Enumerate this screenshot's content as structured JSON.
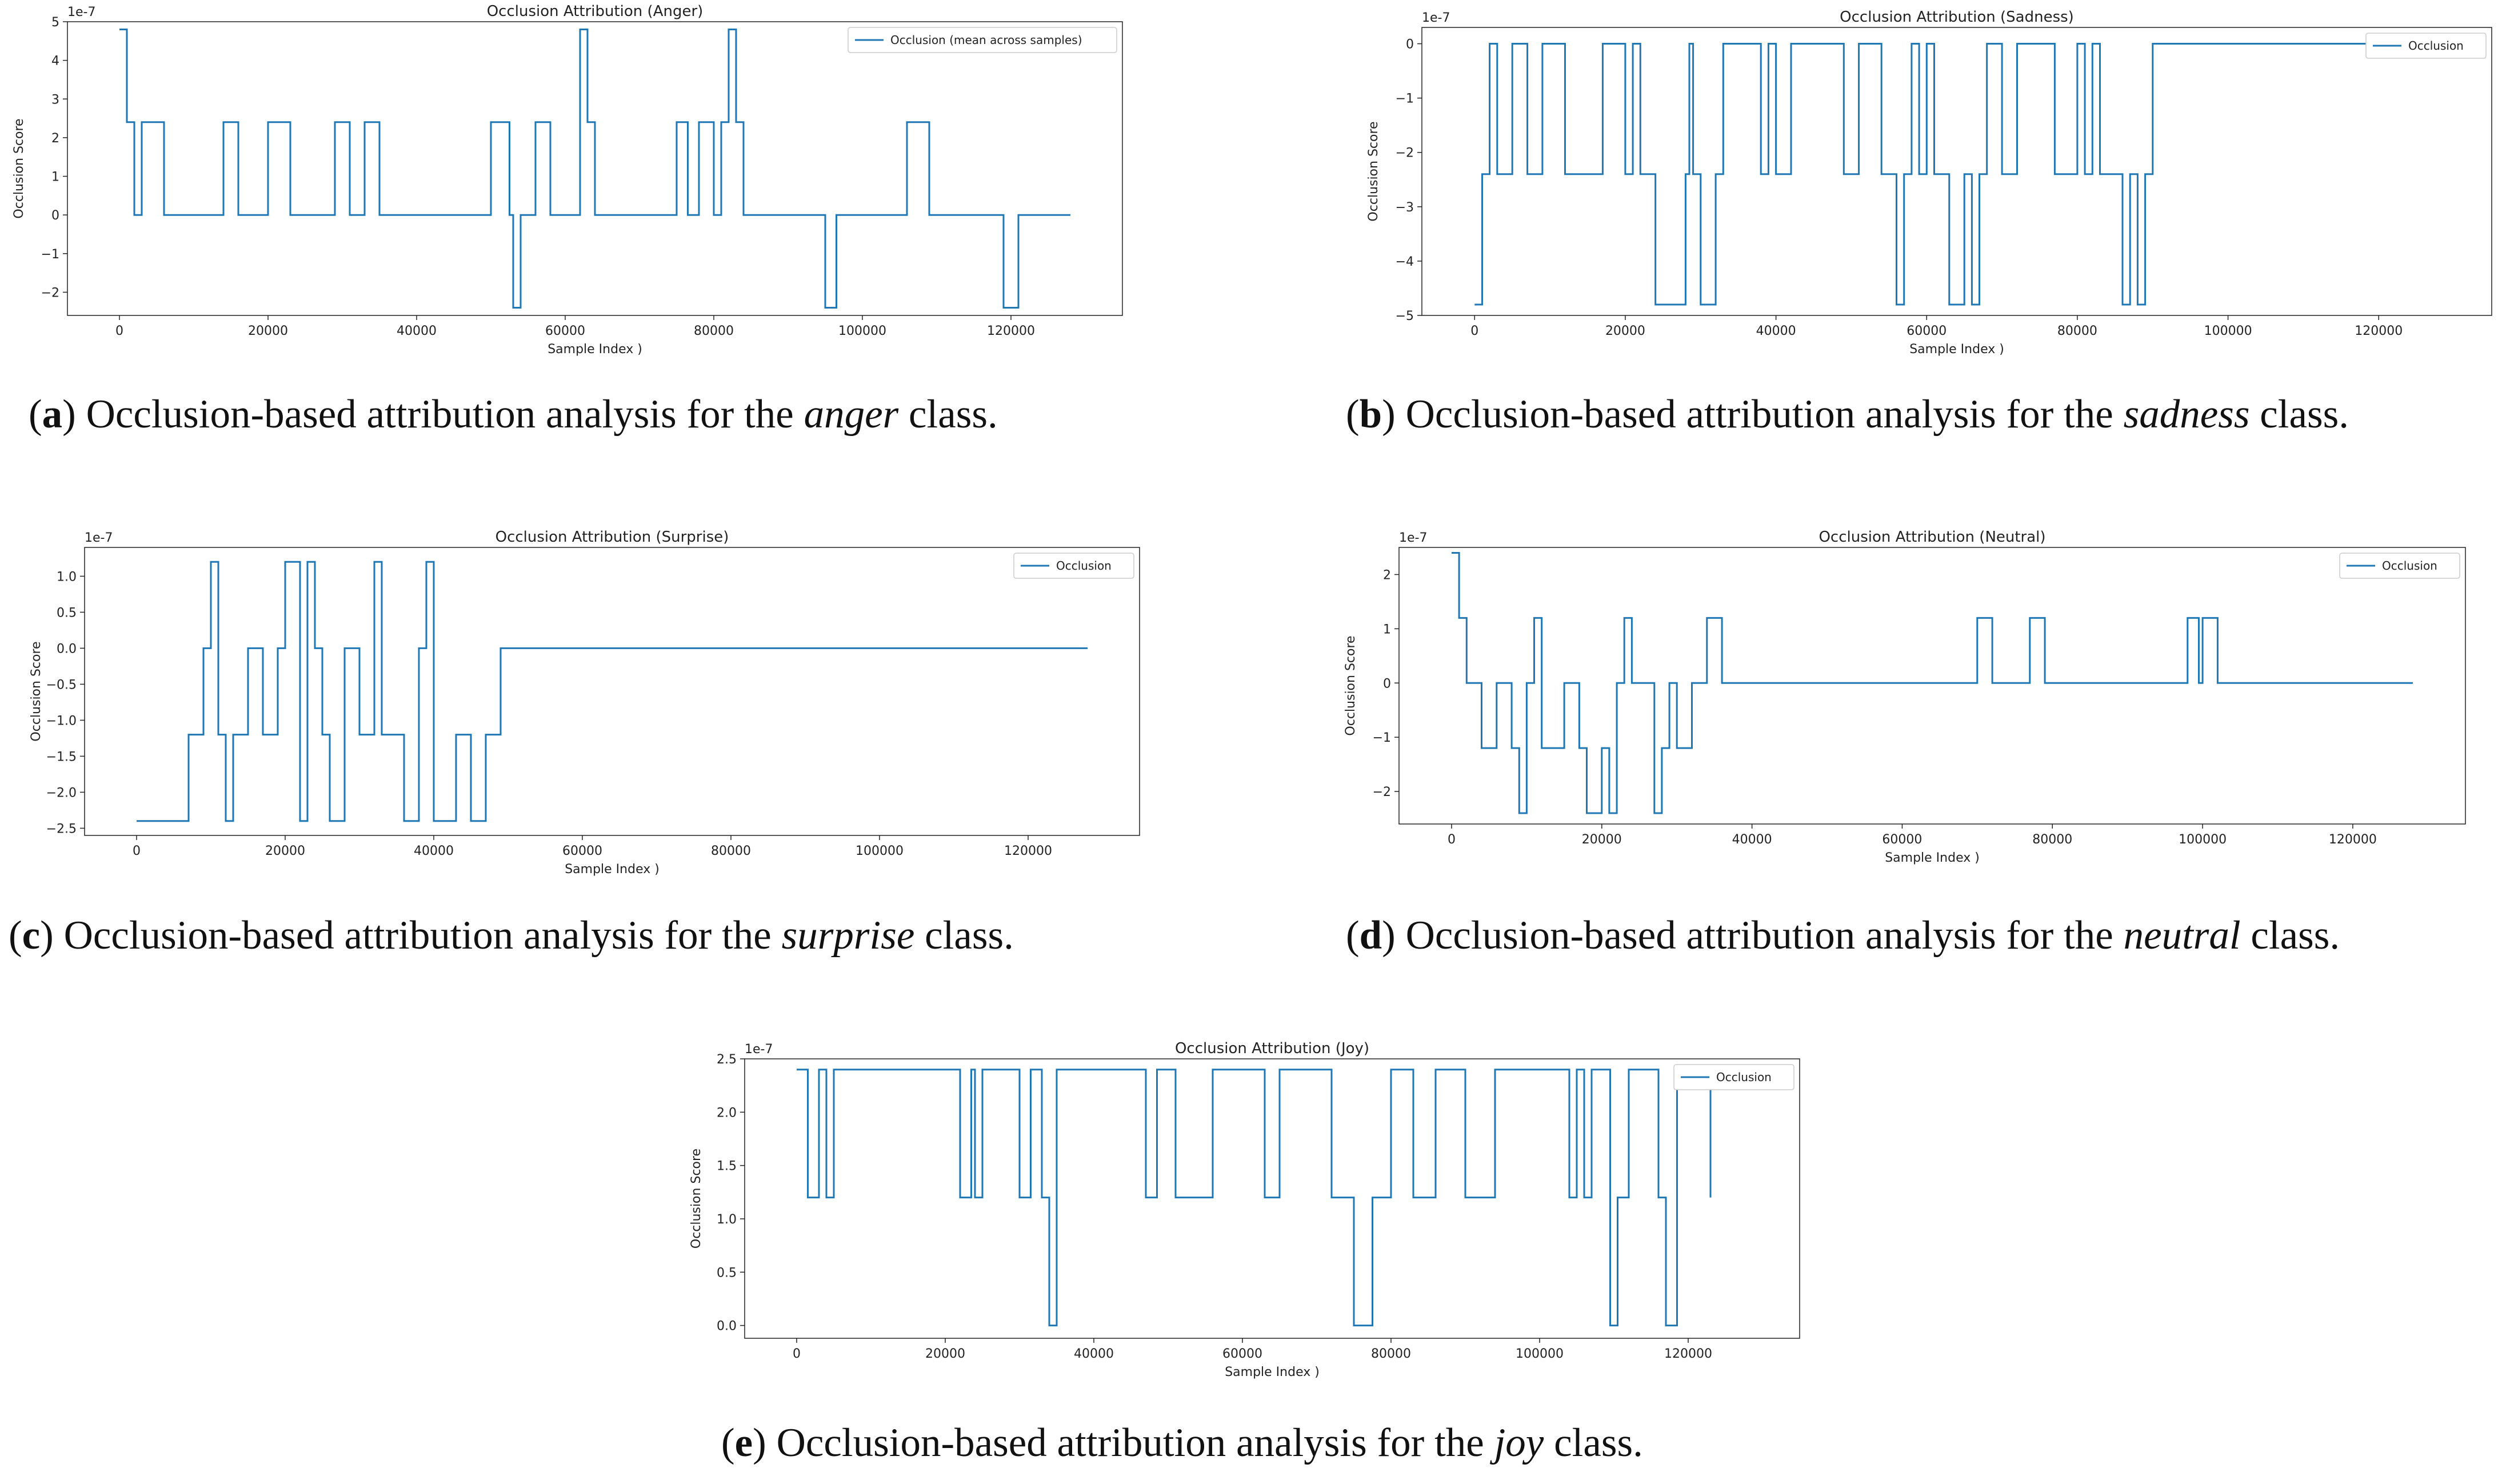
{
  "figure": {
    "captions": [
      {
        "label": "a",
        "prefix": "Occlusion-based attribution analysis for the ",
        "emph": "anger",
        "suffix": " class."
      },
      {
        "label": "b",
        "prefix": "Occlusion-based attribution analysis for the ",
        "emph": "sadness",
        "suffix": " class."
      },
      {
        "label": "c",
        "prefix": "Occlusion-based attribution analysis for the ",
        "emph": "surprise",
        "suffix": " class."
      },
      {
        "label": "d",
        "prefix": "Occlusion-based attribution analysis for the ",
        "emph": "neutral",
        "suffix": " class."
      },
      {
        "label": "e",
        "prefix": "Occlusion-based attribution analysis for the ",
        "emph": "joy",
        "suffix": " class."
      }
    ]
  },
  "chart_data": [
    {
      "type": "line",
      "title": "Occlusion Attribution (Anger)",
      "xlabel": "Sample Index )",
      "ylabel": "Occlusion Score",
      "scale_note": "1e-7",
      "xlim": [
        -7000,
        135000
      ],
      "ylim": [
        -2.6,
        5.0
      ],
      "xticks": [
        0,
        20000,
        40000,
        60000,
        80000,
        100000,
        120000
      ],
      "yticks": [
        -2,
        -1,
        0,
        1,
        2,
        3,
        4,
        5
      ],
      "ytick_labels": [
        "−2",
        "−1",
        "0",
        "1",
        "2",
        "3",
        "4",
        "5"
      ],
      "legend": "top-right",
      "line_color": "#1f77b4",
      "series": [
        {
          "name": "Occlusion (mean across samples)",
          "step": true,
          "x": [
            0,
            1000,
            2000,
            3000,
            6000,
            14000,
            16000,
            20000,
            23000,
            29000,
            31000,
            33000,
            35000,
            50000,
            52500,
            53000,
            54000,
            56000,
            58000,
            62000,
            63000,
            64000,
            75000,
            76500,
            78000,
            80000,
            81000,
            82000,
            83000,
            84000,
            95000,
            96500,
            106000,
            109000,
            119000,
            121000,
            128000
          ],
          "y": [
            4.8,
            2.4,
            0,
            2.4,
            0,
            2.4,
            0,
            2.4,
            0,
            2.4,
            0,
            2.4,
            0,
            2.4,
            0,
            -2.4,
            0,
            2.4,
            0,
            4.8,
            2.4,
            0,
            2.4,
            0,
            2.4,
            0,
            2.4,
            4.8,
            2.4,
            0,
            -2.4,
            0,
            2.4,
            0,
            -2.4,
            0,
            0
          ]
        }
      ]
    },
    {
      "type": "line",
      "title": "Occlusion Attribution (Sadness)",
      "xlabel": "Sample Index )",
      "ylabel": "Occlusion Score",
      "scale_note": "1e-7",
      "xlim": [
        -7000,
        135000
      ],
      "ylim": [
        -5.0,
        0.3
      ],
      "xticks": [
        0,
        20000,
        40000,
        60000,
        80000,
        100000,
        120000
      ],
      "yticks": [
        -5,
        -4,
        -3,
        -2,
        -1,
        0
      ],
      "ytick_labels": [
        "−5",
        "−4",
        "−3",
        "−2",
        "−1",
        "0"
      ],
      "legend": "top-right",
      "line_color": "#1f77b4",
      "series": [
        {
          "name": "Occlusion",
          "step": true,
          "x": [
            0,
            1000,
            2000,
            3000,
            5000,
            7000,
            9000,
            12000,
            17000,
            20000,
            21000,
            22000,
            24000,
            28000,
            28500,
            29000,
            30000,
            32000,
            33000,
            38000,
            39000,
            40000,
            42000,
            49000,
            51000,
            54000,
            56000,
            57000,
            58000,
            59000,
            60000,
            61000,
            63000,
            65000,
            66000,
            67000,
            68000,
            70000,
            72000,
            77000,
            80000,
            81000,
            82000,
            83000,
            86000,
            87000,
            88000,
            89000,
            90000,
            128000
          ],
          "y": [
            -4.8,
            -2.4,
            0,
            -2.4,
            0,
            -2.4,
            0,
            -2.4,
            0,
            -2.4,
            0,
            -2.4,
            -4.8,
            -2.4,
            0,
            -2.4,
            -4.8,
            -2.4,
            0,
            -2.4,
            0,
            -2.4,
            0,
            -2.4,
            0,
            -2.4,
            -4.8,
            -2.4,
            0,
            -2.4,
            0,
            -2.4,
            -4.8,
            -2.4,
            -4.8,
            -2.4,
            0,
            -2.4,
            0,
            -2.4,
            0,
            -2.4,
            0,
            -2.4,
            -4.8,
            -2.4,
            -4.8,
            -2.4,
            0,
            0
          ]
        }
      ]
    },
    {
      "type": "line",
      "title": "Occlusion Attribution (Surprise)",
      "xlabel": "Sample Index )",
      "ylabel": "Occlusion Score",
      "scale_note": "1e-7",
      "xlim": [
        -7000,
        135000
      ],
      "ylim": [
        -2.6,
        1.4
      ],
      "xticks": [
        0,
        20000,
        40000,
        60000,
        80000,
        100000,
        120000
      ],
      "yticks": [
        -2.5,
        -2.0,
        -1.5,
        -1.0,
        -0.5,
        0.0,
        0.5,
        1.0
      ],
      "ytick_labels": [
        "−2.5",
        "−2.0",
        "−1.5",
        "−1.0",
        "−0.5",
        "0.0",
        "0.5",
        "1.0"
      ],
      "legend": "top-right",
      "line_color": "#1f77b4",
      "series": [
        {
          "name": "Occlusion",
          "step": true,
          "x": [
            0,
            7000,
            9000,
            10000,
            11000,
            12000,
            13000,
            15000,
            17000,
            19000,
            20000,
            22000,
            23000,
            24000,
            25000,
            26000,
            28000,
            30000,
            32000,
            33000,
            36000,
            38000,
            39000,
            40000,
            43000,
            45000,
            47000,
            49000,
            128000
          ],
          "y": [
            -2.4,
            -1.2,
            0,
            1.2,
            -1.2,
            -2.4,
            -1.2,
            0,
            -1.2,
            0,
            1.2,
            -2.4,
            1.2,
            0,
            -1.2,
            -2.4,
            0,
            -1.2,
            1.2,
            -1.2,
            -2.4,
            0,
            1.2,
            -2.4,
            -1.2,
            -2.4,
            -1.2,
            0,
            0
          ]
        }
      ]
    },
    {
      "type": "line",
      "title": "Occlusion Attribution (Neutral)",
      "xlabel": "Sample Index )",
      "ylabel": "Occlusion Score",
      "scale_note": "1e-7",
      "xlim": [
        -7000,
        135000
      ],
      "ylim": [
        -2.6,
        2.5
      ],
      "xticks": [
        0,
        20000,
        40000,
        60000,
        80000,
        100000,
        120000
      ],
      "yticks": [
        -2,
        -1,
        0,
        1,
        2
      ],
      "ytick_labels": [
        "−2",
        "−1",
        "0",
        "1",
        "2"
      ],
      "legend": "top-right",
      "line_color": "#1f77b4",
      "series": [
        {
          "name": "Occlusion",
          "step": true,
          "x": [
            0,
            1000,
            2000,
            4000,
            6000,
            8000,
            9000,
            10000,
            11000,
            12000,
            15000,
            17000,
            18000,
            20000,
            21000,
            22000,
            23000,
            24000,
            27000,
            28000,
            29000,
            30000,
            32000,
            34000,
            36000,
            70000,
            72000,
            77000,
            79000,
            98000,
            99500,
            100000,
            102000,
            128000
          ],
          "y": [
            2.4,
            1.2,
            0,
            -1.2,
            0,
            -1.2,
            -2.4,
            0,
            1.2,
            -1.2,
            0,
            -1.2,
            -2.4,
            -1.2,
            -2.4,
            0,
            1.2,
            0,
            -2.4,
            -1.2,
            0,
            -1.2,
            0,
            1.2,
            0,
            1.2,
            0,
            1.2,
            0,
            1.2,
            0,
            1.2,
            0,
            0
          ]
        }
      ]
    },
    {
      "type": "line",
      "title": "Occlusion Attribution (Joy)",
      "xlabel": "Sample Index )",
      "ylabel": "Occlusion Score",
      "scale_note": "1e-7",
      "xlim": [
        -7000,
        135000
      ],
      "ylim": [
        -0.12,
        2.5
      ],
      "xticks": [
        0,
        20000,
        40000,
        60000,
        80000,
        100000,
        120000
      ],
      "yticks": [
        0.0,
        0.5,
        1.0,
        1.5,
        2.0,
        2.5
      ],
      "ytick_labels": [
        "0.0",
        "0.5",
        "1.0",
        "1.5",
        "2.0",
        "2.5"
      ],
      "legend": "top-right",
      "line_color": "#1f77b4",
      "series": [
        {
          "name": "Occlusion",
          "step": true,
          "x": [
            0,
            1500,
            3000,
            4000,
            5000,
            22000,
            23500,
            24000,
            25000,
            30000,
            31500,
            33000,
            34000,
            35000,
            47000,
            48500,
            51000,
            56000,
            63000,
            65000,
            72000,
            75000,
            77500,
            80000,
            83000,
            86000,
            90000,
            94000,
            104000,
            105000,
            106000,
            107000,
            109500,
            110500,
            112000,
            116000,
            117000,
            118500,
            123000
          ],
          "y": [
            2.4,
            1.2,
            2.4,
            1.2,
            2.4,
            1.2,
            2.4,
            1.2,
            2.4,
            1.2,
            2.4,
            1.2,
            0,
            2.4,
            1.2,
            2.4,
            1.2,
            2.4,
            1.2,
            2.4,
            1.2,
            0,
            1.2,
            2.4,
            1.2,
            2.4,
            1.2,
            2.4,
            1.2,
            2.4,
            1.2,
            2.4,
            0,
            1.2,
            2.4,
            1.2,
            0,
            2.4,
            1.2
          ]
        }
      ]
    }
  ]
}
